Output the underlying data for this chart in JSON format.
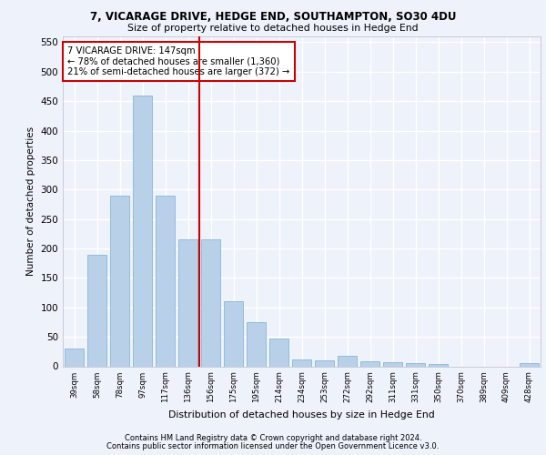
{
  "title1": "7, VICARAGE DRIVE, HEDGE END, SOUTHAMPTON, SO30 4DU",
  "title2": "Size of property relative to detached houses in Hedge End",
  "xlabel": "Distribution of detached houses by size in Hedge End",
  "ylabel": "Number of detached properties",
  "categories": [
    "39sqm",
    "58sqm",
    "78sqm",
    "97sqm",
    "117sqm",
    "136sqm",
    "156sqm",
    "175sqm",
    "195sqm",
    "214sqm",
    "234sqm",
    "253sqm",
    "272sqm",
    "292sqm",
    "311sqm",
    "331sqm",
    "350sqm",
    "370sqm",
    "389sqm",
    "409sqm",
    "428sqm"
  ],
  "values": [
    30,
    190,
    290,
    460,
    290,
    215,
    215,
    110,
    75,
    47,
    12,
    10,
    18,
    8,
    7,
    5,
    4,
    0,
    0,
    0,
    5
  ],
  "bar_color": "#b8d0e8",
  "bar_edge_color": "#7aafd4",
  "vline_x": 5.5,
  "vline_color": "#cc0000",
  "annotation_text": "7 VICARAGE DRIVE: 147sqm\n← 78% of detached houses are smaller (1,360)\n21% of semi-detached houses are larger (372) →",
  "annotation_box_color": "#cc0000",
  "ylim": [
    0,
    560
  ],
  "yticks": [
    0,
    50,
    100,
    150,
    200,
    250,
    300,
    350,
    400,
    450,
    500,
    550
  ],
  "footer1": "Contains HM Land Registry data © Crown copyright and database right 2024.",
  "footer2": "Contains public sector information licensed under the Open Government Licence v3.0.",
  "bg_color": "#eef2fb",
  "grid_color": "#ffffff"
}
